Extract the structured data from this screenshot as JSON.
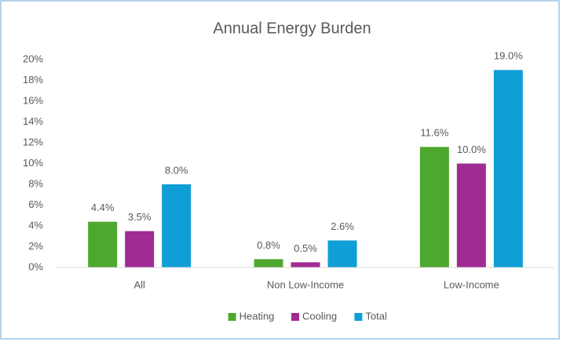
{
  "chart_data": {
    "type": "bar",
    "title": "Annual Energy Burden",
    "categories": [
      "All",
      "Non Low-Income",
      "Low-Income"
    ],
    "series": [
      {
        "name": "Heating",
        "color": "#4ea72e",
        "values": [
          4.4,
          0.8,
          11.6
        ],
        "value_labels": [
          "4.4%",
          "0.8%",
          "11.6%"
        ]
      },
      {
        "name": "Cooling",
        "color": "#a02b93",
        "values": [
          3.5,
          0.5,
          10.0
        ],
        "value_labels": [
          "3.5%",
          "0.5%",
          "10.0%"
        ]
      },
      {
        "name": "Total",
        "color": "#0f9ed5",
        "values": [
          8.0,
          2.6,
          19.0
        ],
        "value_labels": [
          "8.0%",
          "2.6%",
          "19.0%"
        ]
      }
    ],
    "ylim": [
      0,
      20
    ],
    "yticks": [
      {
        "value": 0,
        "label": "0%"
      },
      {
        "value": 2,
        "label": "2%"
      },
      {
        "value": 4,
        "label": "4%"
      },
      {
        "value": 6,
        "label": "6%"
      },
      {
        "value": 8,
        "label": "8%"
      },
      {
        "value": 10,
        "label": "10%"
      },
      {
        "value": 12,
        "label": "12%"
      },
      {
        "value": 14,
        "label": "14%"
      },
      {
        "value": 16,
        "label": "16%"
      },
      {
        "value": 18,
        "label": "18%"
      },
      {
        "value": 20,
        "label": "20%"
      }
    ],
    "grid": false,
    "legend": "bottom"
  }
}
